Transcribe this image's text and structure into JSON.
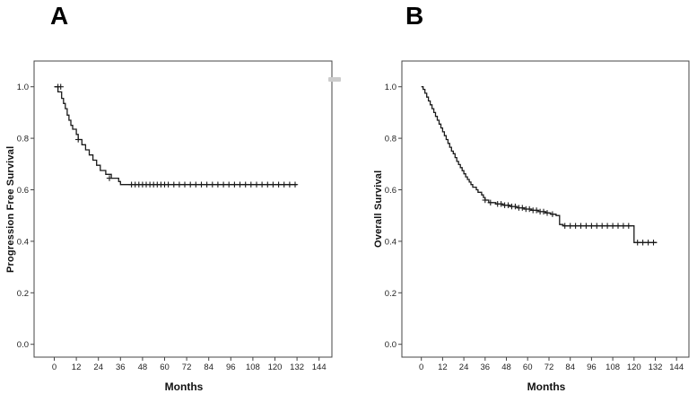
{
  "figure": {
    "background": "#ffffff",
    "panel_a_label": "A",
    "panel_b_label": "B"
  },
  "chart_data": [
    {
      "type": "line",
      "subtype": "kaplan_meier_step",
      "panel": "A",
      "xlabel": "Months",
      "ylabel": "Progression Free Survival",
      "xlim": [
        -11,
        151
      ],
      "ylim": [
        -0.05,
        1.1
      ],
      "xticks": [
        0,
        12,
        24,
        36,
        48,
        60,
        72,
        84,
        96,
        108,
        120,
        132,
        144
      ],
      "yticks": [
        0.0,
        0.2,
        0.4,
        0.6,
        0.8,
        1.0
      ],
      "grid": false,
      "legend": "none",
      "line_color": "#1a1a1a",
      "axis_color": "#444444",
      "series": [
        {
          "name": "Progression Free Survival",
          "step_points": [
            [
              0,
              1.0
            ],
            [
              2,
              0.98
            ],
            [
              4,
              0.955
            ],
            [
              5,
              0.935
            ],
            [
              6,
              0.915
            ],
            [
              7,
              0.89
            ],
            [
              8,
              0.87
            ],
            [
              9,
              0.85
            ],
            [
              10,
              0.835
            ],
            [
              12,
              0.815
            ],
            [
              13,
              0.795
            ],
            [
              15,
              0.775
            ],
            [
              17,
              0.755
            ],
            [
              19,
              0.735
            ],
            [
              21,
              0.715
            ],
            [
              23,
              0.695
            ],
            [
              25,
              0.675
            ],
            [
              28,
              0.66
            ],
            [
              31,
              0.645
            ],
            [
              35,
              0.632
            ],
            [
              36,
              0.62
            ],
            [
              132,
              0.62
            ]
          ],
          "censor_marks": [
            [
              2,
              1.0
            ],
            [
              3.5,
              1.0
            ],
            [
              13,
              0.795
            ],
            [
              30,
              0.645
            ],
            [
              42,
              0.62
            ],
            [
              44,
              0.62
            ],
            [
              46,
              0.62
            ],
            [
              48,
              0.62
            ],
            [
              50,
              0.62
            ],
            [
              52,
              0.62
            ],
            [
              54,
              0.62
            ],
            [
              56,
              0.62
            ],
            [
              58,
              0.62
            ],
            [
              60,
              0.62
            ],
            [
              62,
              0.62
            ],
            [
              65,
              0.62
            ],
            [
              68,
              0.62
            ],
            [
              71,
              0.62
            ],
            [
              74,
              0.62
            ],
            [
              77,
              0.62
            ],
            [
              80,
              0.62
            ],
            [
              83,
              0.62
            ],
            [
              86,
              0.62
            ],
            [
              89,
              0.62
            ],
            [
              92,
              0.62
            ],
            [
              95,
              0.62
            ],
            [
              98,
              0.62
            ],
            [
              101,
              0.62
            ],
            [
              104,
              0.62
            ],
            [
              107,
              0.62
            ],
            [
              110,
              0.62
            ],
            [
              113,
              0.62
            ],
            [
              116,
              0.62
            ],
            [
              119,
              0.62
            ],
            [
              122,
              0.62
            ],
            [
              125,
              0.62
            ],
            [
              128,
              0.62
            ],
            [
              131,
              0.62
            ]
          ]
        }
      ]
    },
    {
      "type": "line",
      "subtype": "kaplan_meier_step",
      "panel": "B",
      "xlabel": "Months",
      "ylabel": "Overall Survival",
      "xlim": [
        -11,
        151
      ],
      "ylim": [
        -0.05,
        1.1
      ],
      "xticks": [
        0,
        12,
        24,
        36,
        48,
        60,
        72,
        84,
        96,
        108,
        120,
        132,
        144
      ],
      "yticks": [
        0.0,
        0.2,
        0.4,
        0.6,
        0.8,
        1.0
      ],
      "grid": false,
      "legend": "none",
      "line_color": "#1a1a1a",
      "axis_color": "#444444",
      "series": [
        {
          "name": "Overall Survival",
          "step_points": [
            [
              0,
              1.0
            ],
            [
              1,
              0.99
            ],
            [
              2,
              0.975
            ],
            [
              3,
              0.96
            ],
            [
              4,
              0.945
            ],
            [
              5,
              0.93
            ],
            [
              6,
              0.915
            ],
            [
              7,
              0.9
            ],
            [
              8,
              0.885
            ],
            [
              9,
              0.87
            ],
            [
              10,
              0.855
            ],
            [
              11,
              0.84
            ],
            [
              12,
              0.825
            ],
            [
              13,
              0.81
            ],
            [
              14,
              0.795
            ],
            [
              15,
              0.78
            ],
            [
              16,
              0.765
            ],
            [
              17,
              0.75
            ],
            [
              18,
              0.74
            ],
            [
              19,
              0.725
            ],
            [
              20,
              0.71
            ],
            [
              21,
              0.698
            ],
            [
              22,
              0.686
            ],
            [
              23,
              0.674
            ],
            [
              24,
              0.662
            ],
            [
              25,
              0.65
            ],
            [
              26,
              0.64
            ],
            [
              27,
              0.63
            ],
            [
              28,
              0.62
            ],
            [
              29,
              0.61
            ],
            [
              31,
              0.6
            ],
            [
              32,
              0.59
            ],
            [
              34,
              0.58
            ],
            [
              35,
              0.57
            ],
            [
              36,
              0.56
            ],
            [
              38,
              0.55
            ],
            [
              42,
              0.545
            ],
            [
              46,
              0.54
            ],
            [
              50,
              0.535
            ],
            [
              54,
              0.53
            ],
            [
              58,
              0.525
            ],
            [
              62,
              0.52
            ],
            [
              66,
              0.515
            ],
            [
              70,
              0.51
            ],
            [
              73,
              0.505
            ],
            [
              76,
              0.5
            ],
            [
              78,
              0.465
            ],
            [
              80,
              0.46
            ],
            [
              119,
              0.46
            ],
            [
              120,
              0.395
            ],
            [
              133,
              0.395
            ]
          ],
          "censor_marks": [
            [
              36,
              0.56
            ],
            [
              39,
              0.55
            ],
            [
              43,
              0.545
            ],
            [
              45,
              0.545
            ],
            [
              47,
              0.54
            ],
            [
              49,
              0.54
            ],
            [
              51,
              0.535
            ],
            [
              53,
              0.535
            ],
            [
              55,
              0.53
            ],
            [
              57,
              0.53
            ],
            [
              59,
              0.525
            ],
            [
              61,
              0.525
            ],
            [
              63,
              0.52
            ],
            [
              65,
              0.52
            ],
            [
              67,
              0.515
            ],
            [
              69,
              0.515
            ],
            [
              71,
              0.51
            ],
            [
              74,
              0.505
            ],
            [
              81,
              0.46
            ],
            [
              84,
              0.46
            ],
            [
              87,
              0.46
            ],
            [
              90,
              0.46
            ],
            [
              93,
              0.46
            ],
            [
              96,
              0.46
            ],
            [
              99,
              0.46
            ],
            [
              102,
              0.46
            ],
            [
              105,
              0.46
            ],
            [
              108,
              0.46
            ],
            [
              111,
              0.46
            ],
            [
              114,
              0.46
            ],
            [
              117,
              0.46
            ],
            [
              122,
              0.395
            ],
            [
              125,
              0.395
            ],
            [
              128,
              0.395
            ],
            [
              131,
              0.395
            ]
          ]
        }
      ]
    }
  ]
}
